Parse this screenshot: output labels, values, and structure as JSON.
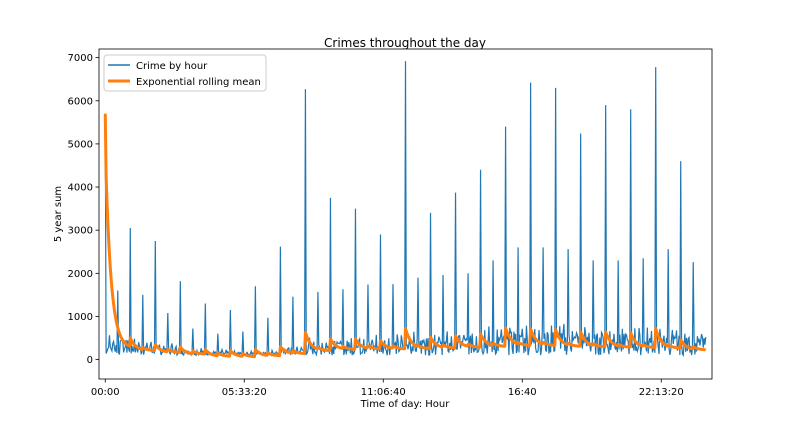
{
  "chart_data": {
    "type": "line",
    "title": "Crimes throughout the day",
    "xlabel": "Time of day: Hour",
    "ylabel": "5 year sum",
    "xlim": [
      "-00:15",
      "24:15"
    ],
    "ylim": [
      -450,
      7200
    ],
    "x_tick_labels": [
      "00:00",
      "05:33:20",
      "11:06:40",
      "16:40",
      "22:13:20"
    ],
    "y_ticks": [
      0,
      1000,
      2000,
      3000,
      4000,
      5000,
      6000,
      7000
    ],
    "grid": false,
    "legend_position": "top-left",
    "series": [
      {
        "name": "Crime by hour",
        "color": "#1f77b4",
        "hourly_peaks": [
          5700,
          3050,
          2750,
          1820,
          1300,
          1150,
          1700,
          2620,
          6270,
          3750,
          3500,
          2900,
          6920,
          3400,
          3870,
          4400,
          5400,
          6420,
          6300,
          5240,
          5900,
          5800,
          6780,
          4600
        ],
        "half_hour_peaks": [
          1600,
          1500,
          1080,
          720,
          600,
          650,
          970,
          1460,
          1570,
          1630,
          1740,
          1750,
          1900,
          1960,
          2000,
          2300,
          2600,
          2600,
          2560,
          2300,
          2300,
          2350,
          2560,
          2260
        ],
        "baseline": [
          450,
          380,
          300,
          220,
          180,
          160,
          180,
          260,
          400,
          420,
          460,
          480,
          500,
          520,
          560,
          600,
          640,
          680,
          650,
          620,
          600,
          580,
          560,
          520
        ]
      },
      {
        "name": "Exponential rolling mean",
        "color": "#ff7f0e",
        "start_value": 5700,
        "hourly_jumps": [
          null,
          550,
          380,
          320,
          260,
          230,
          260,
          330,
          700,
          520,
          520,
          480,
          800,
          560,
          600,
          640,
          800,
          780,
          760,
          700,
          700,
          680,
          800,
          500
        ],
        "floor": [
          250,
          200,
          160,
          120,
          70,
          60,
          80,
          130,
          200,
          230,
          240,
          240,
          250,
          260,
          280,
          300,
          320,
          320,
          300,
          290,
          280,
          270,
          260,
          220
        ]
      }
    ]
  }
}
